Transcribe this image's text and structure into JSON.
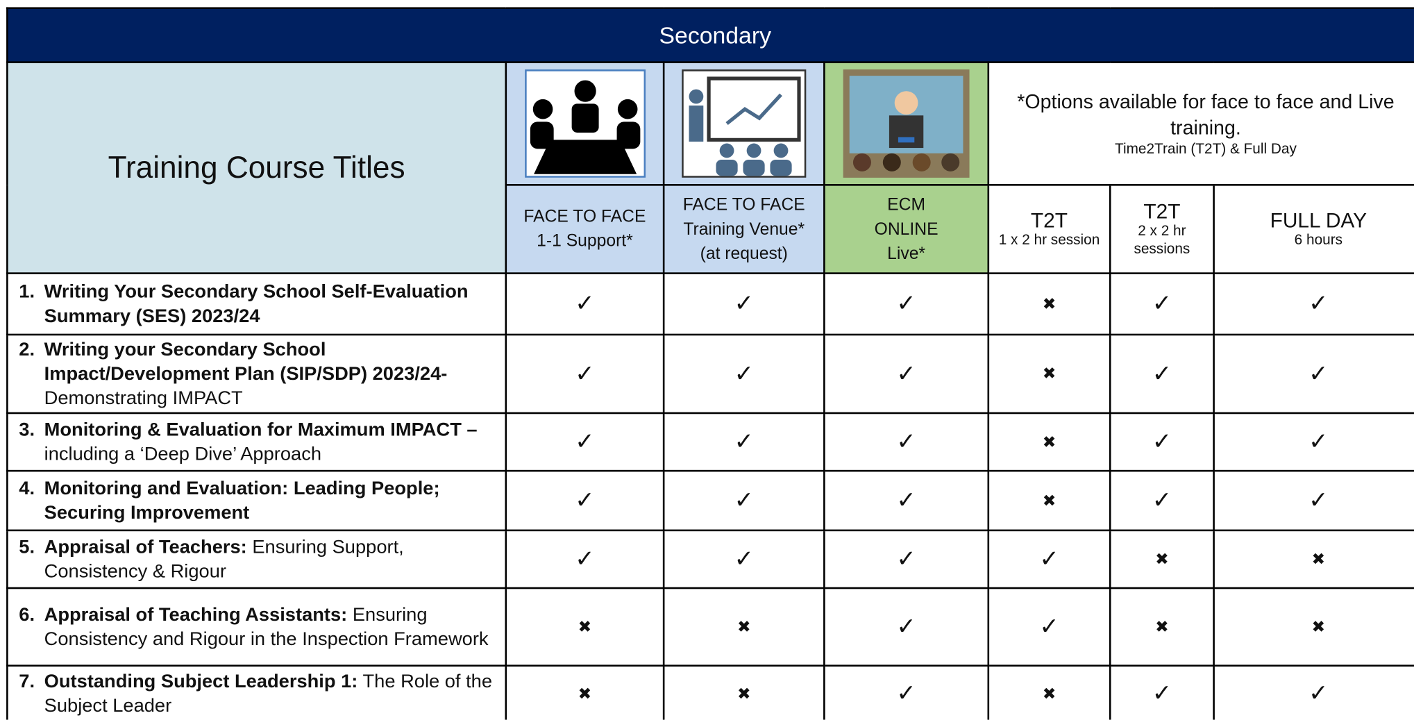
{
  "title": "Secondary",
  "header": {
    "course_titles": "Training Course Titles",
    "options": [
      "*Options available for face to face and Live training.",
      "Time2Train (T2T) & Full Day"
    ],
    "columns": [
      {
        "lines": [
          "FACE TO FACE",
          "1-1 Support*"
        ]
      },
      {
        "lines": [
          "FACE TO FACE",
          "Training Venue*",
          "(at request)"
        ]
      },
      {
        "lines": [
          "ECM",
          "ONLINE",
          "Live*"
        ]
      },
      {
        "title": "T2T",
        "detail": "1 x 2 hr session"
      },
      {
        "title": "T2T",
        "detail": "2 x 2 hr sessions"
      },
      {
        "title": "FULL DAY",
        "detail": "6 hours"
      }
    ]
  },
  "rows": [
    {
      "number": "1.",
      "bold": "Writing Your Secondary School Self-Evaluation Summary (SES) 2023/24",
      "marks": [
        "✓",
        "✓",
        "✓",
        "✖",
        "✓",
        "✓"
      ]
    },
    {
      "number": "2.",
      "bold": "Writing your Secondary School Impact/Development Plan (SIP/SDP) 2023/24-",
      "text": "Demonstrating IMPACT",
      "marks": [
        "✓",
        "✓",
        "✓",
        "✖",
        "✓",
        "✓"
      ]
    },
    {
      "number": "3.",
      "bold": "Monitoring & Evaluation for Maximum IMPACT –",
      "text": "including a ‘Deep Dive’ Approach",
      "marks": [
        "✓",
        "✓",
        "✓",
        "✖",
        "✓",
        "✓"
      ]
    },
    {
      "number": "4.",
      "bold": "Monitoring and Evaluation: Leading People; Securing Improvement",
      "marks": [
        "✓",
        "✓",
        "✓",
        "✖",
        "✓",
        "✓"
      ]
    },
    {
      "number": "5.",
      "bold": "Appraisal of Teachers:",
      "text": "Ensuring Support, Consistency & Rigour",
      "marks": [
        "✓",
        "✓",
        "✓",
        "✓",
        "✖",
        "✖"
      ]
    },
    {
      "number": "6.",
      "bold": "Appraisal of Teaching Assistants:",
      "text": "Ensuring Consistency and Rigour in the Inspection Framework",
      "marks": [
        "✖",
        "✖",
        "✓",
        "✓",
        "✖",
        "✖"
      ]
    },
    {
      "number": "7.",
      "bold": "Outstanding Subject Leadership 1:",
      "text": "The Role of the Subject Leader",
      "marks": [
        "✖",
        "✖",
        "✓",
        "✖",
        "✓",
        "✓"
      ]
    }
  ]
}
